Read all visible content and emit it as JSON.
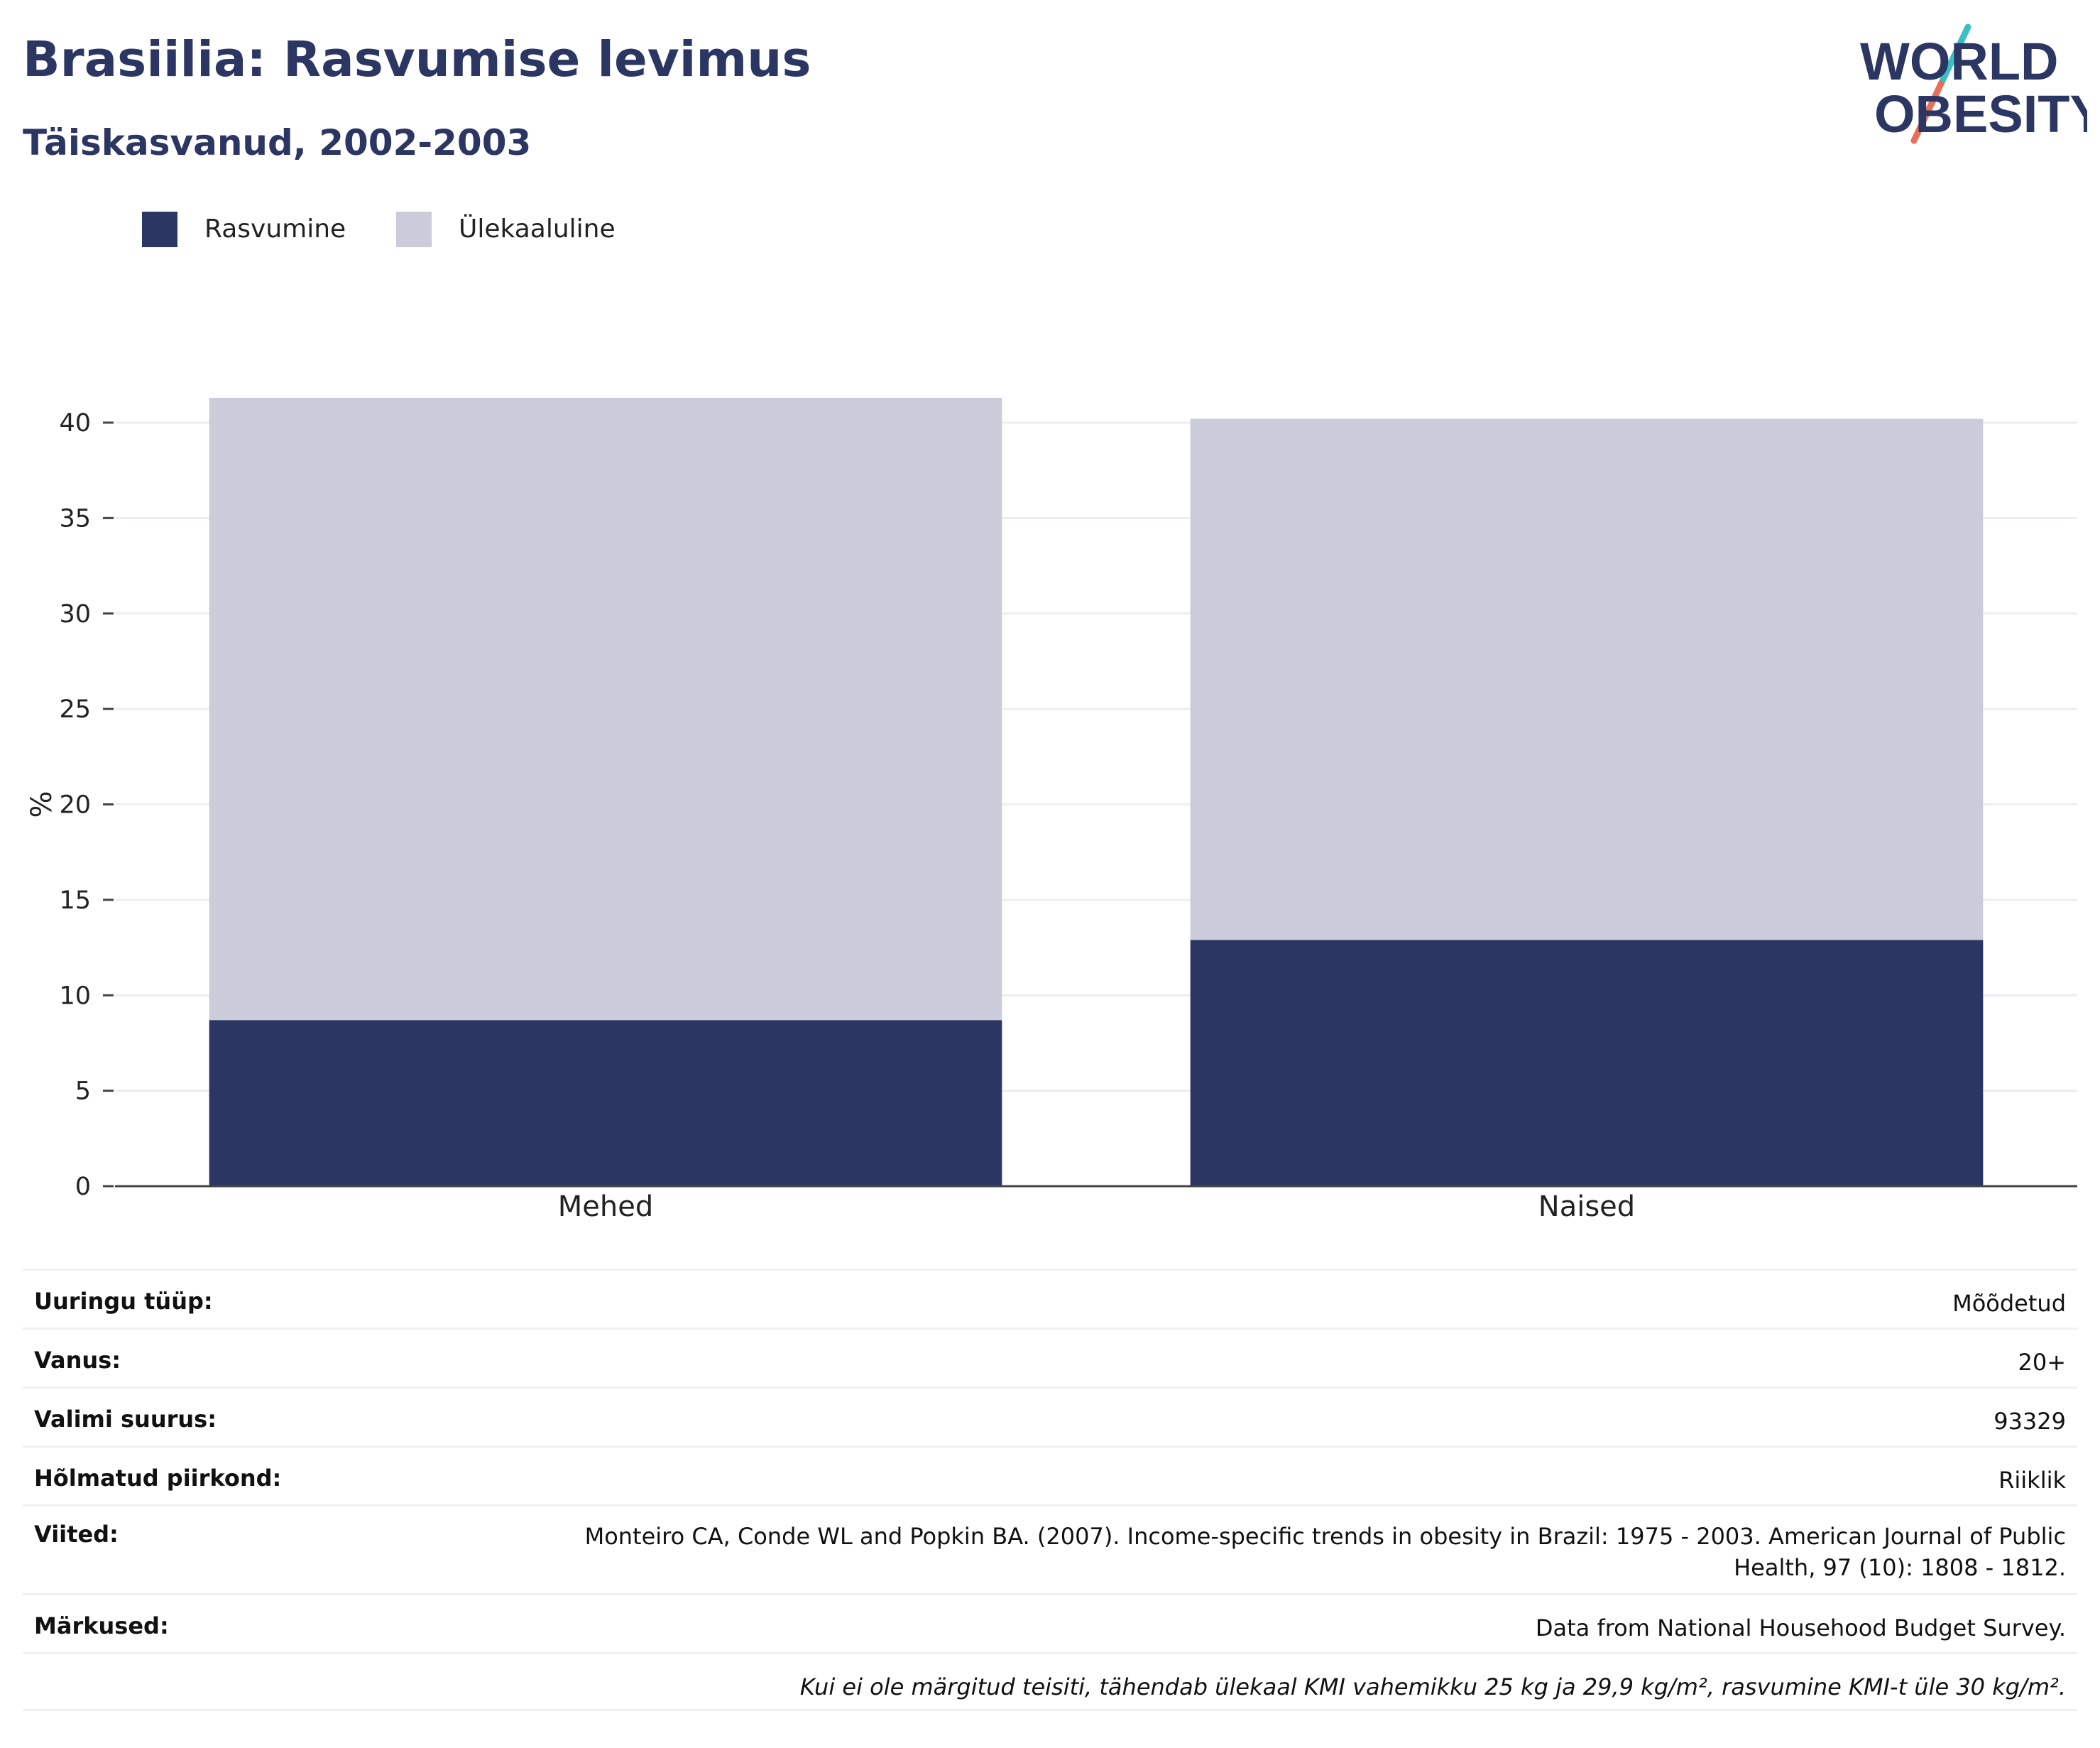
{
  "header": {
    "title": "Brasiilia: Rasvumise levimus",
    "subtitle": "Täiskasvanud, 2002-2003"
  },
  "logo": {
    "line1": "WORLD",
    "line2": "OBESITY",
    "colors": {
      "text": "#2b3663",
      "slash_top": "#3bbfc4",
      "slash_bottom": "#e8705a"
    }
  },
  "legend": [
    {
      "label": "Rasvumine",
      "color": "#2b3663"
    },
    {
      "label": "Ülekaaluline",
      "color": "#cacdd9"
    }
  ],
  "chart_data": {
    "type": "bar",
    "stacked": true,
    "categories": [
      "Mehed",
      "Naised"
    ],
    "series": [
      {
        "name": "Rasvumine",
        "color": "#2b3663",
        "values": [
          8.7,
          12.9
        ]
      },
      {
        "name": "Ülekaaluline",
        "color": "#cacdd9",
        "values": [
          32.6,
          27.3
        ]
      }
    ],
    "ylabel": "%",
    "xlabel": "",
    "ylim": [
      0,
      42
    ],
    "yticks": [
      0,
      5,
      10,
      15,
      20,
      25,
      30,
      35,
      40
    ],
    "grid": true,
    "legend_position": "top-left"
  },
  "info": {
    "rows": [
      {
        "key": "Uuringu tüüp:",
        "value": "Mõõdetud"
      },
      {
        "key": "Vanus:",
        "value": "20+"
      },
      {
        "key": "Valimi suurus:",
        "value": "93329"
      },
      {
        "key": "Hõlmatud piirkond:",
        "value": "Riiklik"
      },
      {
        "key": "Viited:",
        "value": "Monteiro CA, Conde WL and Popkin BA. (2007). Income-specific trends in obesity in Brazil: 1975 - 2003. American Journal of Public Health, 97 (10): 1808 - 1812."
      },
      {
        "key": "Märkused:",
        "value": "Data from National Househood Budget Survey."
      }
    ],
    "note": "Kui ei ole märgitud teisiti, tähendab ülekaal KMI vahemikku 25 kg ja 29,9 kg/m², rasvumine KMI-t üle 30 kg/m²."
  }
}
